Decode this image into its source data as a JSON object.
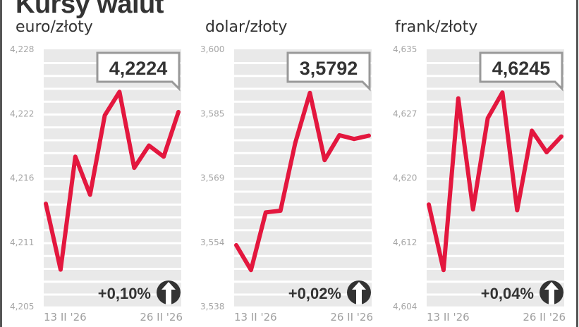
{
  "title": "Kursy walut",
  "colors": {
    "line": "#e3173e",
    "band": "#e9e9e9",
    "text": "#333333",
    "tick": "#a6a6a6"
  },
  "chart_data": [
    {
      "type": "line",
      "title": "euro/złoty",
      "ylim": [
        4.205,
        4.228
      ],
      "yticks": [
        "4,228",
        "4,222",
        "4,216",
        "4,211",
        "4,205"
      ],
      "xticks": [
        "13 II '26",
        "26 II '26"
      ],
      "values": [
        4.2142,
        4.2083,
        4.2184,
        4.215,
        4.2221,
        4.2242,
        4.2174,
        4.2194,
        4.2184,
        4.2224
      ],
      "last_label": "4,2224",
      "change": "+0,10%",
      "change_icon": "arrow-up-circle-icon"
    },
    {
      "type": "line",
      "title": "dolar/złoty",
      "ylim": [
        3.538,
        3.6
      ],
      "yticks": [
        "3,600",
        "3,585",
        "3,569",
        "3,554",
        "3,538"
      ],
      "xticks": [
        "13 II '26",
        "26 II '26"
      ],
      "values": [
        3.5528,
        3.5468,
        3.5607,
        3.5611,
        3.5774,
        3.5895,
        3.5733,
        3.5793,
        3.5784,
        3.5792
      ],
      "last_label": "3,5792",
      "change": "+0,02%",
      "change_icon": "arrow-up-circle-icon"
    },
    {
      "type": "line",
      "title": "frank/złoty",
      "ylim": [
        4.604,
        4.635
      ],
      "yticks": [
        "4,635",
        "4,627",
        "4,620",
        "4,612",
        "4,604"
      ],
      "xticks": [
        "13 II '26",
        "26 II '26"
      ],
      "values": [
        4.6163,
        4.6084,
        4.6291,
        4.6157,
        4.6267,
        4.6298,
        4.6156,
        4.6252,
        4.6226,
        4.6245
      ],
      "last_label": "4,6245",
      "change": "+0,04%",
      "change_icon": "arrow-up-circle-icon"
    }
  ]
}
